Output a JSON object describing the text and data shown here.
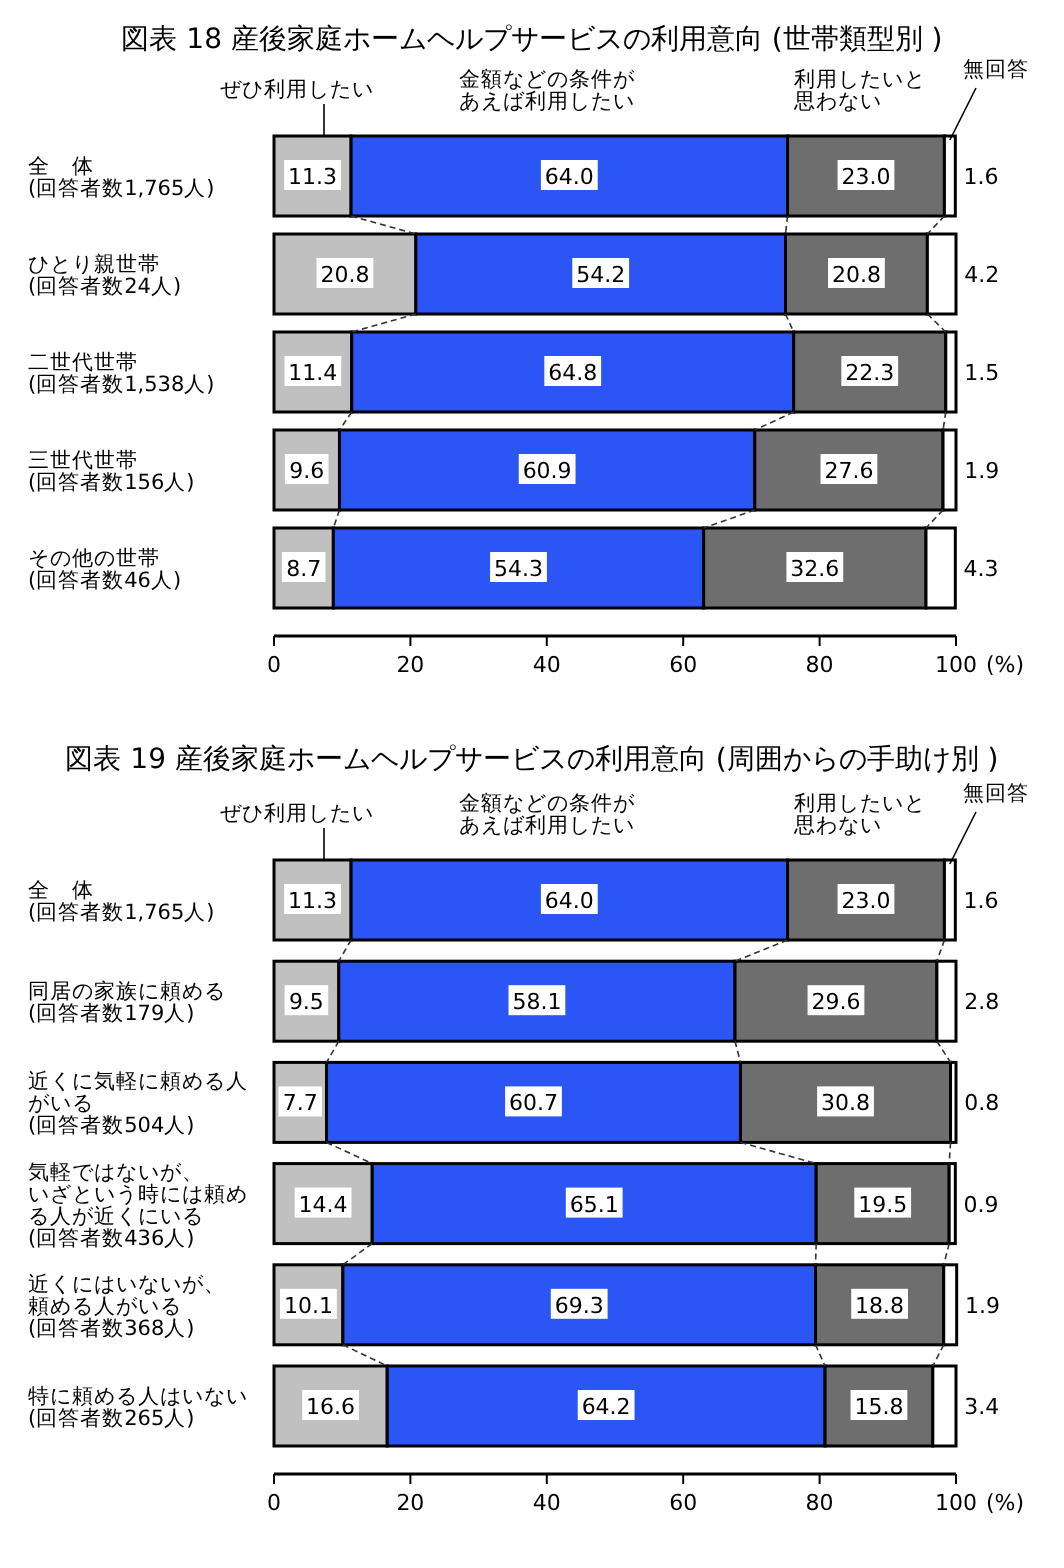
{
  "chart_data": [
    {
      "type": "bar",
      "orientation": "horizontal",
      "stacked": true,
      "title": "図表 18  産後家庭ホームヘルプサービスの利用意向 (世帯類型別 )",
      "xlabel": "(%)",
      "legend": "top",
      "xlim": [
        0,
        100
      ],
      "xticks": [
        0,
        20,
        40,
        60,
        80,
        100
      ],
      "categories": [
        "全　体(回答者数1,765人)",
        "ひとり親世帯(回答者数24人)",
        "二世代世帯(回答者数1,538人)",
        "三世代世帯(回答者数156人)",
        "その他の世帯(回答者数46人)"
      ],
      "series": [
        {
          "name": "ぜひ利用したい",
          "color": "#c0c0c0",
          "values": [
            11.3,
            20.8,
            11.4,
            9.6,
            8.7
          ],
          "value_labels": [
            "11.3",
            "20.8",
            "11.4",
            "9.6",
            "8.7"
          ]
        },
        {
          "name": "金額などの条件があえば利用したい",
          "color": "#2b55f5",
          "values": [
            64.0,
            54.2,
            64.8,
            60.9,
            54.3
          ],
          "value_labels": [
            "64.0",
            "54.2",
            "64.8",
            "60.9",
            "54.3"
          ]
        },
        {
          "name": "利用したいと思わない",
          "color": "#6e6e6e",
          "values": [
            23.0,
            20.8,
            22.3,
            27.6,
            32.6
          ],
          "value_labels": [
            "23.0",
            "20.8",
            "22.3",
            "27.6",
            "32.6"
          ]
        },
        {
          "name": "無回答",
          "color": "#ffffff",
          "values": [
            1.6,
            4.2,
            1.5,
            1.9,
            4.3
          ],
          "value_labels": [
            "1.6",
            "4.2",
            "1.5",
            "1.9",
            "4.3"
          ]
        }
      ]
    },
    {
      "type": "bar",
      "orientation": "horizontal",
      "stacked": true,
      "title": "図表 19  産後家庭ホームヘルプサービスの利用意向 (周囲からの手助け別 )",
      "xlabel": "(%)",
      "legend": "top",
      "xlim": [
        0,
        100
      ],
      "xticks": [
        0,
        20,
        40,
        60,
        80,
        100
      ],
      "categories": [
        "全　体(回答者数1,765人)",
        "同居の家族に頼める(回答者数179人)",
        "近くに気軽に頼める人がいる(回答者数504人)",
        "気軽ではないが、いざという時には頼める人が近くにいる(回答者数436人)",
        "近くにはいないが、頼める人がいる(回答者数368人)",
        "特に頼める人はいない(回答者数265人)"
      ],
      "series": [
        {
          "name": "ぜひ利用したい",
          "color": "#c0c0c0",
          "values": [
            11.3,
            9.5,
            7.7,
            14.4,
            10.1,
            16.6
          ],
          "value_labels": [
            "11.3",
            "9.5",
            "7.7",
            "14.4",
            "10.1",
            "16.6"
          ]
        },
        {
          "name": "金額などの条件があえば利用したい",
          "color": "#2b55f5",
          "values": [
            64.0,
            58.1,
            60.7,
            65.1,
            69.3,
            64.2
          ],
          "value_labels": [
            "64.0",
            "58.1",
            "60.7",
            "65.1",
            "69.3",
            "64.2"
          ]
        },
        {
          "name": "利用したいと思わない",
          "color": "#6e6e6e",
          "values": [
            23.0,
            29.6,
            30.8,
            19.5,
            18.8,
            15.8
          ],
          "value_labels": [
            "23.0",
            "29.6",
            "30.8",
            "19.5",
            "18.8",
            "15.8"
          ]
        },
        {
          "name": "無回答",
          "color": "#ffffff",
          "values": [
            1.6,
            2.8,
            0.8,
            0.9,
            1.9,
            3.4
          ],
          "value_labels": [
            "1.6",
            "2.8",
            "0.8",
            "0.9",
            "1.9",
            "3.4"
          ]
        }
      ]
    }
  ]
}
